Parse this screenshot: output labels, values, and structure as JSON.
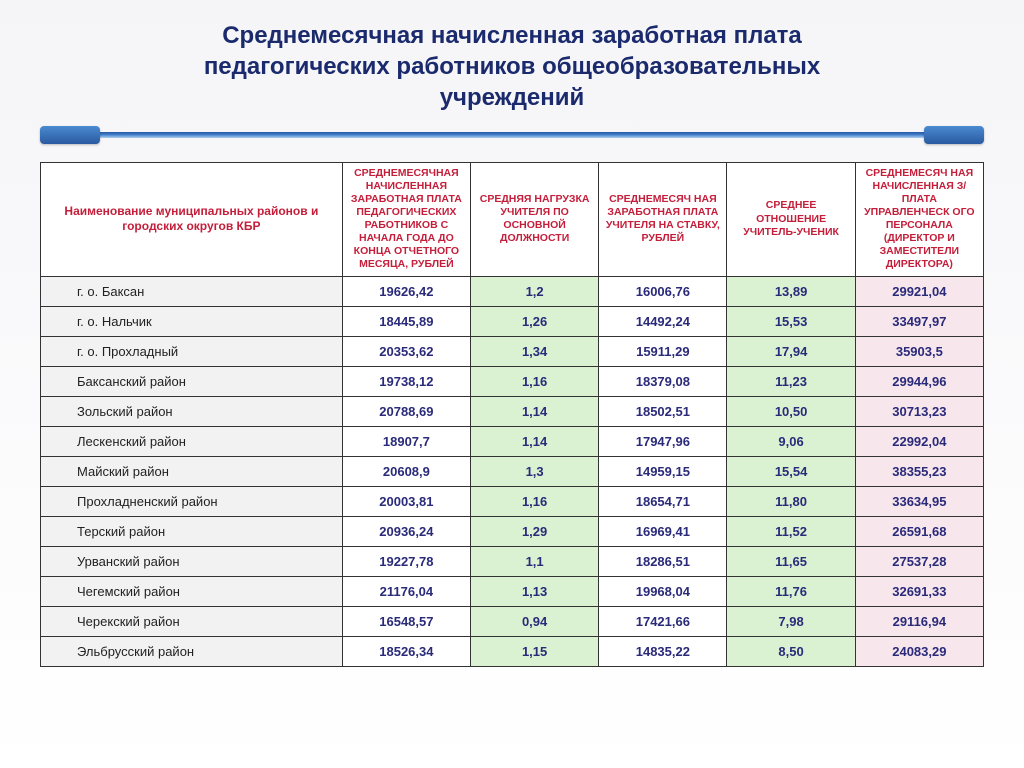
{
  "title_line1": "Среднемесячная начисленная заработная плата",
  "title_line2": "педагогических работников общеобразовательных",
  "title_line3": "учреждений",
  "colors": {
    "title": "#1a2a6c",
    "header_text": "#c41e3a",
    "value_text": "#2a2a7a",
    "even_col_bg": "#daf1d2",
    "last_col_bg": "#f7e6ec",
    "name_bg": "#f2f2f2",
    "border": "#333333",
    "bar_top": "#2a5aa0",
    "bar_bottom": "#b0d0ef"
  },
  "fontsizes": {
    "title": 24,
    "header": 10.5,
    "name_header": 12,
    "body": 13
  },
  "headers": {
    "name": "Наименование муниципальных районов и городских округов КБР",
    "c1": "Среднемесячная начисленная заработная плата педагогических работников с начала года до конца отчетного месяца, рублей",
    "c2": "Средняя нагрузка учителя по основной должности",
    "c3": "Среднемесяч ная заработная плата учителя на ставку, рублей",
    "c4": "Среднее отношение учитель-ученик",
    "c5": "Среднемесяч ная начисленная з/плата управленческ ого персонала (директор и заместители директора)"
  },
  "rows": [
    {
      "name": "г. о.  Баксан",
      "c1": "19626,42",
      "c2": "1,2",
      "c3": "16006,76",
      "c4": "13,89",
      "c5": "29921,04"
    },
    {
      "name": "г. о.  Нальчик",
      "c1": "18445,89",
      "c2": "1,26",
      "c3": "14492,24",
      "c4": "15,53",
      "c5": "33497,97"
    },
    {
      "name": "г. о.  Прохладный",
      "c1": "20353,62",
      "c2": "1,34",
      "c3": "15911,29",
      "c4": "17,94",
      "c5": "35903,5"
    },
    {
      "name": "Баксанский  район",
      "c1": "19738,12",
      "c2": "1,16",
      "c3": "18379,08",
      "c4": "11,23",
      "c5": "29944,96"
    },
    {
      "name": "Зольский район",
      "c1": "20788,69",
      "c2": "1,14",
      "c3": "18502,51",
      "c4": "10,50",
      "c5": "30713,23"
    },
    {
      "name": "Лескенский район",
      "c1": "18907,7",
      "c2": "1,14",
      "c3": "17947,96",
      "c4": "9,06",
      "c5": "22992,04"
    },
    {
      "name": "Майский район",
      "c1": "20608,9",
      "c2": "1,3",
      "c3": "14959,15",
      "c4": "15,54",
      "c5": "38355,23"
    },
    {
      "name": "Прохладненский район",
      "c1": "20003,81",
      "c2": "1,16",
      "c3": "18654,71",
      "c4": "11,80",
      "c5": "33634,95"
    },
    {
      "name": "Терский район",
      "c1": "20936,24",
      "c2": "1,29",
      "c3": "16969,41",
      "c4": "11,52",
      "c5": "26591,68"
    },
    {
      "name": "Урванский район",
      "c1": "19227,78",
      "c2": "1,1",
      "c3": "18286,51",
      "c4": "11,65",
      "c5": "27537,28"
    },
    {
      "name": "Чегемский район",
      "c1": "21176,04",
      "c2": "1,13",
      "c3": "19968,04",
      "c4": "11,76",
      "c5": "32691,33"
    },
    {
      "name": "Черекский район",
      "c1": "16548,57",
      "c2": "0,94",
      "c3": "17421,66",
      "c4": "7,98",
      "c5": "29116,94"
    },
    {
      "name": "Эльбрусский  район",
      "c1": "18526,34",
      "c2": "1,15",
      "c3": "14835,22",
      "c4": "8,50",
      "c5": "24083,29"
    }
  ]
}
